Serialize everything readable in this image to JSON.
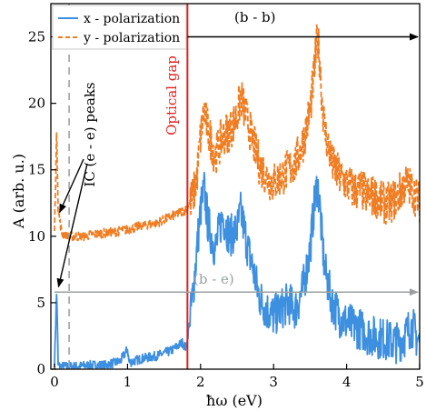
{
  "chart_data": {
    "type": "line",
    "title": "",
    "xlabel": "ħω (eV)",
    "ylabel": "A (arb. u.)",
    "xlim": [
      -0.05,
      5.0
    ],
    "ylim": [
      0,
      27.5
    ],
    "xticks": [
      "0",
      "1",
      "2",
      "3",
      "4",
      "5"
    ],
    "yticks": [
      "0",
      "5",
      "10",
      "15",
      "20",
      "25"
    ],
    "legend_position": "top-left",
    "grid": false,
    "colors": {
      "x": "#3d8fe0",
      "y": "#f07d22",
      "gap": "#e0201e",
      "ic": "#a0a0a0",
      "arrow": "#000000",
      "be": "#9aa0a0"
    },
    "series": [
      {
        "name": "x - polarization",
        "style": "solid",
        "x": [
          0.0,
          0.03,
          0.05,
          0.08,
          0.15,
          0.3,
          0.5,
          0.7,
          0.9,
          1.0,
          1.02,
          1.2,
          1.4,
          1.6,
          1.75,
          1.8,
          1.85,
          1.9,
          1.95,
          2.0,
          2.05,
          2.1,
          2.2,
          2.3,
          2.4,
          2.5,
          2.55,
          2.6,
          2.65,
          2.7,
          2.8,
          2.9,
          3.0,
          3.1,
          3.2,
          3.3,
          3.4,
          3.5,
          3.55,
          3.6,
          3.63,
          3.66,
          3.7,
          3.8,
          3.9,
          4.0,
          4.1,
          4.2,
          4.3,
          4.4,
          4.5,
          4.6,
          4.7,
          4.8,
          4.85,
          4.9,
          4.95,
          5.0
        ],
        "values": [
          0.5,
          6.0,
          0.3,
          0.2,
          0.2,
          0.2,
          0.3,
          0.3,
          0.6,
          1.5,
          0.5,
          0.8,
          1.0,
          1.4,
          2.0,
          1.6,
          3.5,
          6.0,
          9.0,
          12.0,
          13.5,
          11.0,
          9.0,
          11.5,
          10.0,
          10.5,
          11.8,
          10.5,
          9.0,
          8.0,
          5.5,
          4.5,
          4.0,
          4.5,
          5.0,
          4.5,
          6.0,
          9.0,
          12.0,
          14.0,
          12.5,
          10.0,
          7.5,
          5.0,
          4.0,
          3.5,
          3.2,
          3.0,
          2.6,
          2.4,
          2.3,
          2.1,
          2.0,
          2.5,
          3.0,
          3.2,
          2.5,
          2.0
        ]
      },
      {
        "name": "y - polarization",
        "style": "dashed",
        "x": [
          0.0,
          0.03,
          0.05,
          0.1,
          0.2,
          0.4,
          0.6,
          0.8,
          1.0,
          1.2,
          1.4,
          1.6,
          1.8,
          1.9,
          1.95,
          2.0,
          2.05,
          2.1,
          2.2,
          2.3,
          2.4,
          2.5,
          2.55,
          2.6,
          2.65,
          2.7,
          2.8,
          2.9,
          3.0,
          3.1,
          3.2,
          3.3,
          3.4,
          3.5,
          3.55,
          3.6,
          3.63,
          3.66,
          3.7,
          3.8,
          3.9,
          4.0,
          4.1,
          4.2,
          4.3,
          4.4,
          4.5,
          4.6,
          4.7,
          4.8,
          4.9,
          5.0
        ],
        "values": [
          10.5,
          18.0,
          12.0,
          10.2,
          10.0,
          10.0,
          10.2,
          10.3,
          10.5,
          10.8,
          11.0,
          11.5,
          12.0,
          13.0,
          14.5,
          17.5,
          19.5,
          18.0,
          16.0,
          17.5,
          18.0,
          19.0,
          20.5,
          19.5,
          18.5,
          17.5,
          15.5,
          14.5,
          14.0,
          14.5,
          15.0,
          15.5,
          17.0,
          19.5,
          22.0,
          25.0,
          23.5,
          20.5,
          18.0,
          15.5,
          14.5,
          14.0,
          13.5,
          13.5,
          13.0,
          13.0,
          12.5,
          12.5,
          13.0,
          14.0,
          13.5,
          12.5
        ]
      }
    ],
    "annotations": {
      "optical_gap": {
        "x": 1.82,
        "text": "Optical gap"
      },
      "ic_peaks": {
        "x": 0.2,
        "text": "IC (e - e) peaks"
      },
      "bb": {
        "text": "(b - b)",
        "x_start": 1.82,
        "x_end": 5.0,
        "y": 25
      },
      "be": {
        "text": "(b - e)",
        "x_start": 0.0,
        "x_end": 5.0,
        "y": 5.8
      }
    }
  }
}
